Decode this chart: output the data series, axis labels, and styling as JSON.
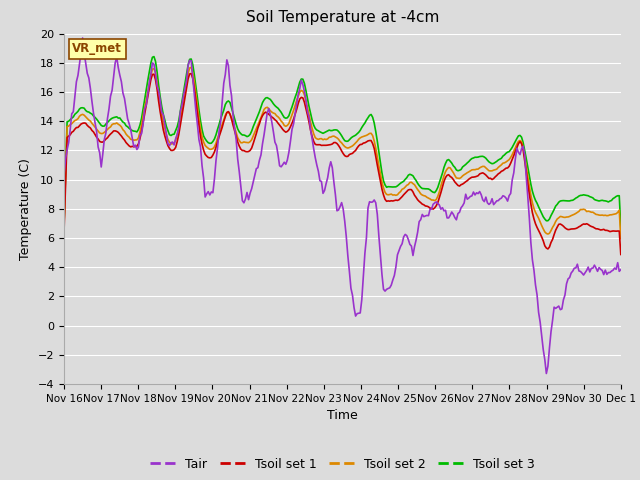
{
  "title": "Soil Temperature at -4cm",
  "xlabel": "Time",
  "ylabel": "Temperature (C)",
  "ylim": [
    -4,
    20
  ],
  "yticks": [
    -4,
    -2,
    0,
    2,
    4,
    6,
    8,
    10,
    12,
    14,
    16,
    18,
    20
  ],
  "bg_color": "#dcdcdc",
  "plot_bg_color": "#dcdcdc",
  "grid_color": "#ffffff",
  "annotation_text": "VR_met",
  "annotation_bg": "#ffffaa",
  "annotation_border": "#8b4500",
  "line_colors": {
    "Tair": "#9933cc",
    "Tsoil set 1": "#cc0000",
    "Tsoil set 2": "#dd8800",
    "Tsoil set 3": "#00bb00"
  },
  "x_tick_labels": [
    "Nov 16",
    "Nov 17",
    "Nov 18",
    "Nov 19",
    "Nov 20",
    "Nov 21",
    "Nov 22",
    "Nov 23",
    "Nov 24",
    "Nov 25",
    "Nov 26",
    "Nov 27",
    "Nov 28",
    "Nov 29",
    "Nov 30",
    "Dec 1"
  ],
  "x_tick_positions": [
    0,
    1,
    2,
    3,
    4,
    5,
    6,
    7,
    8,
    9,
    10,
    11,
    12,
    13,
    14,
    15
  ]
}
